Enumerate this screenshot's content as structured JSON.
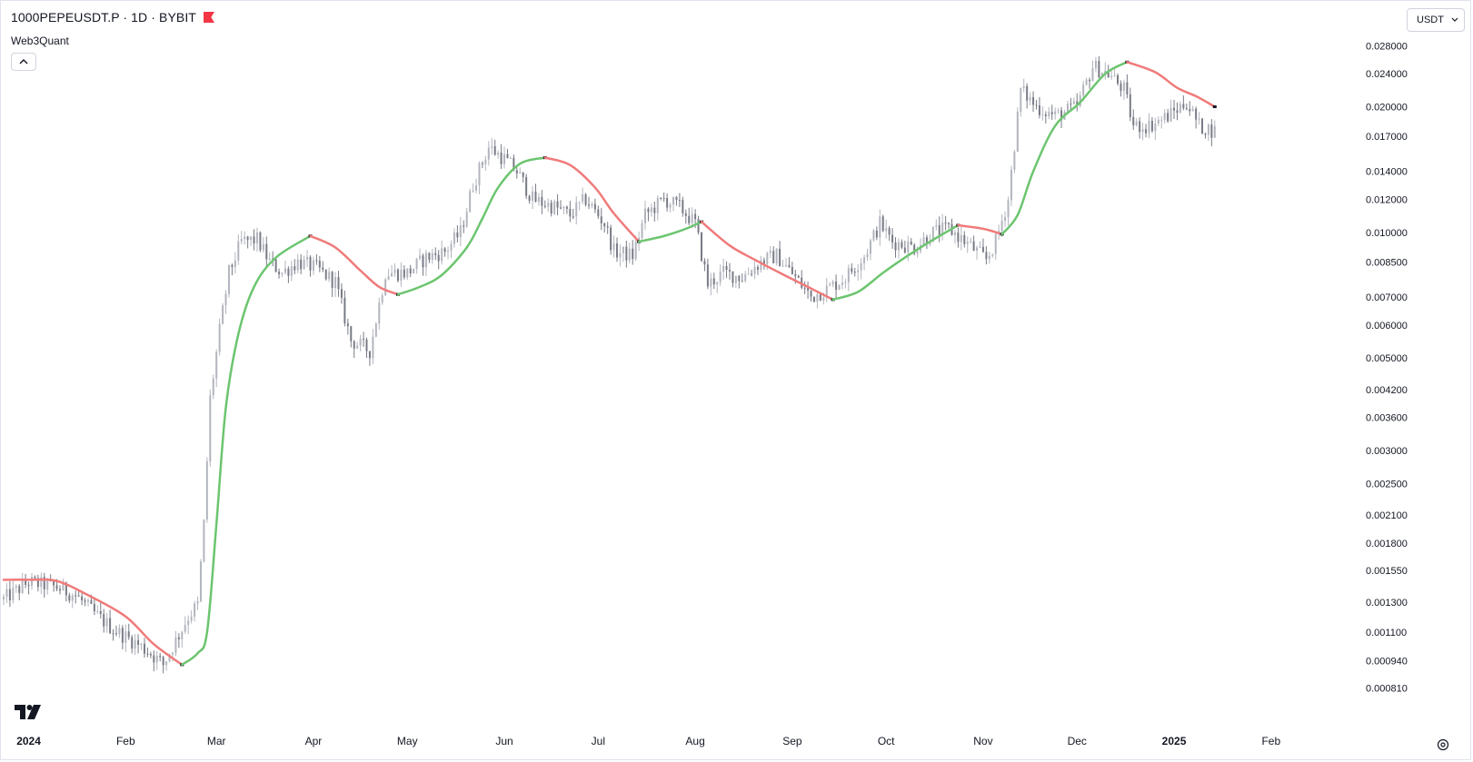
{
  "header": {
    "symbol": "1000PEPEUSDT.P · 1D · BYBIT",
    "indicator": "Web3Quant",
    "currency": "USDT"
  },
  "icons": {
    "flag": "flag-icon",
    "collapse": "chevron-up-icon",
    "currency_dropdown": "chevron-down-icon",
    "logo": "tradingview-logo",
    "settings": "gear-icon"
  },
  "colors": {
    "up_trend": "#6cc56f",
    "down_trend": "#f07a7a",
    "candle": "#9598a1",
    "flag": "#f23645"
  },
  "chart_data": {
    "type": "candlestick",
    "title": "1000PEPEUSDT.P · 1D · BYBIT",
    "y_scale": "log",
    "ylim": [
      0.00076,
      0.0295
    ],
    "y_ticks": [
      "0.028000",
      "0.024000",
      "0.020000",
      "0.017000",
      "0.014000",
      "0.012000",
      "0.010000",
      "0.008500",
      "0.007000",
      "0.006000",
      "0.005000",
      "0.004200",
      "0.003600",
      "0.003000",
      "0.002500",
      "0.002100",
      "0.001800",
      "0.001550",
      "0.001300",
      "0.001100",
      "0.000940",
      "0.000810"
    ],
    "x_ticks": [
      "2024",
      "Feb",
      "Mar",
      "Apr",
      "May",
      "Jun",
      "Jul",
      "Aug",
      "Sep",
      "Oct",
      "Nov",
      "Dec",
      "2025",
      "Feb"
    ],
    "x_tick_dates": [
      "2024-01-01",
      "2024-02-01",
      "2024-03-01",
      "2024-04-01",
      "2024-05-01",
      "2024-06-01",
      "2024-07-01",
      "2024-08-01",
      "2024-09-01",
      "2024-10-01",
      "2024-11-01",
      "2024-12-01",
      "2025-01-01",
      "2025-02-01"
    ],
    "xlim": [
      "2023-12-24",
      "2025-02-24"
    ],
    "price_path": [
      [
        "2023-12-24",
        0.00132
      ],
      [
        "2024-01-01",
        0.00145
      ],
      [
        "2024-01-10",
        0.00141
      ],
      [
        "2024-01-16",
        0.00135
      ],
      [
        "2024-01-22",
        0.00122
      ],
      [
        "2024-01-28",
        0.00112
      ],
      [
        "2024-02-04",
        0.00104
      ],
      [
        "2024-02-09",
        0.00098
      ],
      [
        "2024-02-13",
        0.00092
      ],
      [
        "2024-02-17",
        0.00105
      ],
      [
        "2024-02-21",
        0.0012
      ],
      [
        "2024-02-24",
        0.00128
      ],
      [
        "2024-02-26",
        0.002
      ],
      [
        "2024-02-28",
        0.004
      ],
      [
        "2024-03-02",
        0.0058
      ],
      [
        "2024-03-05",
        0.008
      ],
      [
        "2024-03-09",
        0.0095
      ],
      [
        "2024-03-14",
        0.0096
      ],
      [
        "2024-03-18",
        0.0085
      ],
      [
        "2024-03-22",
        0.008
      ],
      [
        "2024-03-27",
        0.0085
      ],
      [
        "2024-04-02",
        0.0082
      ],
      [
        "2024-04-08",
        0.0076
      ],
      [
        "2024-04-13",
        0.0055
      ],
      [
        "2024-04-19",
        0.0052
      ],
      [
        "2024-04-24",
        0.008
      ],
      [
        "2024-05-01",
        0.008
      ],
      [
        "2024-05-07",
        0.0087
      ],
      [
        "2024-05-13",
        0.009
      ],
      [
        "2024-05-18",
        0.01
      ],
      [
        "2024-05-22",
        0.013
      ],
      [
        "2024-05-27",
        0.016
      ],
      [
        "2024-06-01",
        0.015
      ],
      [
        "2024-06-05",
        0.014
      ],
      [
        "2024-06-10",
        0.012
      ],
      [
        "2024-06-17",
        0.0115
      ],
      [
        "2024-06-22",
        0.011
      ],
      [
        "2024-06-27",
        0.012
      ],
      [
        "2024-07-03",
        0.0105
      ],
      [
        "2024-07-06",
        0.009
      ],
      [
        "2024-07-12",
        0.0088
      ],
      [
        "2024-07-16",
        0.011
      ],
      [
        "2024-07-22",
        0.012
      ],
      [
        "2024-07-27",
        0.0115
      ],
      [
        "2024-08-01",
        0.0105
      ],
      [
        "2024-08-05",
        0.0075
      ],
      [
        "2024-08-10",
        0.008
      ],
      [
        "2024-08-16",
        0.0078
      ],
      [
        "2024-08-22",
        0.0085
      ],
      [
        "2024-08-27",
        0.0088
      ],
      [
        "2024-09-02",
        0.0078
      ],
      [
        "2024-09-07",
        0.007
      ],
      [
        "2024-09-12",
        0.0073
      ],
      [
        "2024-09-18",
        0.0078
      ],
      [
        "2024-09-24",
        0.0088
      ],
      [
        "2024-09-29",
        0.0105
      ],
      [
        "2024-10-03",
        0.0095
      ],
      [
        "2024-10-10",
        0.0092
      ],
      [
        "2024-10-16",
        0.01
      ],
      [
        "2024-10-21",
        0.0102
      ],
      [
        "2024-10-27",
        0.0094
      ],
      [
        "2024-11-02",
        0.0086
      ],
      [
        "2024-11-05",
        0.0095
      ],
      [
        "2024-11-09",
        0.012
      ],
      [
        "2024-11-13",
        0.022
      ],
      [
        "2024-11-18",
        0.02
      ],
      [
        "2024-11-24",
        0.019
      ],
      [
        "2024-12-01",
        0.02
      ],
      [
        "2024-12-06",
        0.025
      ],
      [
        "2024-12-11",
        0.024
      ],
      [
        "2024-12-16",
        0.022
      ],
      [
        "2024-12-19",
        0.018
      ],
      [
        "2024-12-24",
        0.018
      ],
      [
        "2024-12-30",
        0.019
      ],
      [
        "2025-01-05",
        0.0205
      ],
      [
        "2025-01-09",
        0.018
      ],
      [
        "2025-01-14",
        0.0175
      ]
    ],
    "series": [
      {
        "segments": [
          {
            "trend": "down",
            "points": [
              [
                "2023-12-24",
                0.00147
              ],
              [
                "2024-01-01",
                0.00147
              ],
              [
                "2024-01-10",
                0.00146
              ],
              [
                "2024-01-20",
                0.00135
              ],
              [
                "2024-02-01",
                0.0012
              ],
              [
                "2024-02-10",
                0.00103
              ],
              [
                "2024-02-19",
                0.00092
              ]
            ]
          },
          {
            "trend": "up",
            "points": [
              [
                "2024-02-19",
                0.00092
              ],
              [
                "2024-02-24",
                0.00098
              ],
              [
                "2024-02-27",
                0.0011
              ],
              [
                "2024-03-01",
                0.002
              ],
              [
                "2024-03-04",
                0.0038
              ],
              [
                "2024-03-08",
                0.0057
              ],
              [
                "2024-03-13",
                0.0074
              ],
              [
                "2024-03-20",
                0.0087
              ],
              [
                "2024-03-31",
                0.0098
              ]
            ]
          },
          {
            "trend": "down",
            "points": [
              [
                "2024-03-31",
                0.0098
              ],
              [
                "2024-04-08",
                0.0092
              ],
              [
                "2024-04-16",
                0.0081
              ],
              [
                "2024-04-22",
                0.0074
              ],
              [
                "2024-04-28",
                0.0071
              ]
            ]
          },
          {
            "trend": "up",
            "points": [
              [
                "2024-04-28",
                0.0071
              ],
              [
                "2024-05-05",
                0.0074
              ],
              [
                "2024-05-12",
                0.0079
              ],
              [
                "2024-05-20",
                0.0092
              ],
              [
                "2024-05-25",
                0.0108
              ],
              [
                "2024-05-30",
                0.0128
              ],
              [
                "2024-06-06",
                0.0146
              ],
              [
                "2024-06-14",
                0.0151
              ]
            ]
          },
          {
            "trend": "down",
            "points": [
              [
                "2024-06-14",
                0.0151
              ],
              [
                "2024-06-22",
                0.0145
              ],
              [
                "2024-06-30",
                0.0128
              ],
              [
                "2024-07-06",
                0.0111
              ],
              [
                "2024-07-14",
                0.0095
              ]
            ]
          },
          {
            "trend": "up",
            "points": [
              [
                "2024-07-14",
                0.0095
              ],
              [
                "2024-07-22",
                0.0098
              ],
              [
                "2024-07-29",
                0.0102
              ],
              [
                "2024-08-03",
                0.0106
              ]
            ]
          },
          {
            "trend": "down",
            "points": [
              [
                "2024-08-03",
                0.0106
              ],
              [
                "2024-08-12",
                0.0093
              ],
              [
                "2024-08-20",
                0.0086
              ],
              [
                "2024-08-28",
                0.008
              ],
              [
                "2024-09-06",
                0.0074
              ],
              [
                "2024-09-14",
                0.0069
              ]
            ]
          },
          {
            "trend": "up",
            "points": [
              [
                "2024-09-14",
                0.0069
              ],
              [
                "2024-09-22",
                0.0072
              ],
              [
                "2024-09-30",
                0.008
              ],
              [
                "2024-10-08",
                0.0088
              ],
              [
                "2024-10-16",
                0.0096
              ],
              [
                "2024-10-24",
                0.0104
              ]
            ]
          },
          {
            "trend": "down",
            "points": [
              [
                "2024-10-24",
                0.0104
              ],
              [
                "2024-11-01",
                0.0102
              ],
              [
                "2024-11-07",
                0.0099
              ]
            ]
          },
          {
            "trend": "up",
            "points": [
              [
                "2024-11-07",
                0.0099
              ],
              [
                "2024-11-12",
                0.011
              ],
              [
                "2024-11-17",
                0.014
              ],
              [
                "2024-11-24",
                0.018
              ],
              [
                "2024-12-02",
                0.0205
              ],
              [
                "2024-12-10",
                0.024
              ],
              [
                "2024-12-17",
                0.0256
              ]
            ]
          },
          {
            "trend": "down",
            "points": [
              [
                "2024-12-17",
                0.0256
              ],
              [
                "2024-12-26",
                0.0242
              ],
              [
                "2025-01-02",
                0.0222
              ],
              [
                "2025-01-08",
                0.0212
              ],
              [
                "2025-01-14",
                0.02
              ]
            ]
          }
        ]
      }
    ],
    "grid": false,
    "legend": "none"
  }
}
